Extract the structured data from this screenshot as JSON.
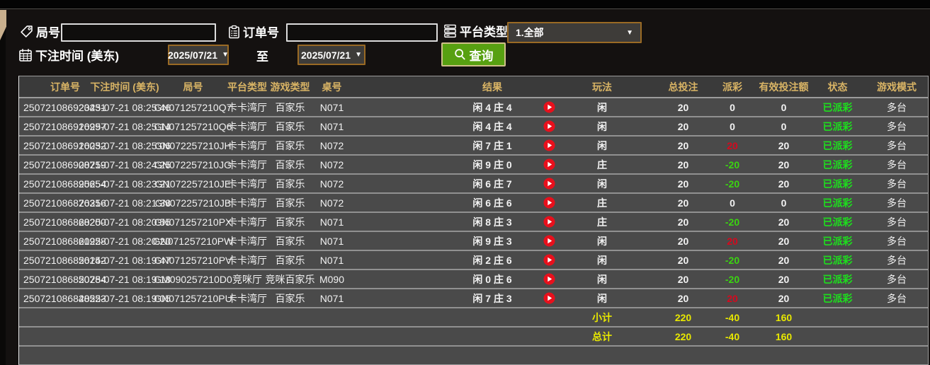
{
  "filters": {
    "round_label": "局号",
    "round_value": "",
    "order_label": "订单号",
    "order_value": "",
    "platform_label": "平台类型",
    "platform_value": "1.全部",
    "bet_time_label": "下注时间 (美东)",
    "date_from": "2025/07/21",
    "date_to": "2025/07/21",
    "to_label": "至",
    "query_label": "查询",
    "dropdown_arrow": "▼"
  },
  "table": {
    "columns": [
      "订单号",
      "下注时间 (美东)",
      "局号",
      "平台类型",
      "游戏类型",
      "桌号",
      "结果",
      "",
      "玩法",
      "总投注",
      "派彩",
      "有效投注额",
      "状态",
      "游戏模式"
    ],
    "rows": [
      {
        "order_id": "250721086923431",
        "bet_time": "2025-07-21 08:25:46",
        "round_id": "GN071257210Q7",
        "platform": "卡卡湾厅",
        "game_type": "百家乐",
        "table_no": "N071",
        "result": "闲 4 庄 4",
        "play": "闲",
        "total_bet": "20",
        "payout": "0",
        "payout_color": "white",
        "valid_bet": "0",
        "status": "已派彩",
        "mode": "多台"
      },
      {
        "order_id": "250721086916997",
        "bet_time": "2025-07-21 08:25:14",
        "round_id": "GN071257210Q6",
        "platform": "卡卡湾厅",
        "game_type": "百家乐",
        "table_no": "N071",
        "result": "闲 4 庄 4",
        "play": "闲",
        "total_bet": "20",
        "payout": "0",
        "payout_color": "white",
        "valid_bet": "0",
        "status": "已派彩",
        "mode": "多台"
      },
      {
        "order_id": "250721086916032",
        "bet_time": "2025-07-21 08:25:06",
        "round_id": "GN072257210JH",
        "platform": "卡卡湾厅",
        "game_type": "百家乐",
        "table_no": "N072",
        "result": "闲 7 庄 1",
        "play": "闲",
        "total_bet": "20",
        "payout": "20",
        "payout_color": "red",
        "valid_bet": "20",
        "status": "已派彩",
        "mode": "多台"
      },
      {
        "order_id": "250721086908719",
        "bet_time": "2025-07-21 08:24:25",
        "round_id": "GN072257210JG",
        "platform": "卡卡湾厅",
        "game_type": "百家乐",
        "table_no": "N072",
        "result": "闲 9 庄 0",
        "play": "庄",
        "total_bet": "20",
        "payout": "-20",
        "payout_color": "green",
        "valid_bet": "20",
        "status": "已派彩",
        "mode": "多台"
      },
      {
        "order_id": "250721086895654",
        "bet_time": "2025-07-21 08:23:21",
        "round_id": "GN072257210JE",
        "platform": "卡卡湾厅",
        "game_type": "百家乐",
        "table_no": "N072",
        "result": "闲 6 庄 7",
        "play": "闲",
        "total_bet": "20",
        "payout": "-20",
        "payout_color": "green",
        "valid_bet": "20",
        "status": "已派彩",
        "mode": "多台"
      },
      {
        "order_id": "250721086876316",
        "bet_time": "2025-07-21 08:21:38",
        "round_id": "GN072257210JB",
        "platform": "卡卡湾厅",
        "game_type": "百家乐",
        "table_no": "N072",
        "result": "闲 6 庄 6",
        "play": "庄",
        "total_bet": "20",
        "payout": "0",
        "payout_color": "white",
        "valid_bet": "0",
        "status": "已派彩",
        "mode": "多台"
      },
      {
        "order_id": "250721086868200",
        "bet_time": "2025-07-21 08:20:55",
        "round_id": "GN071257210PX",
        "platform": "卡卡湾厅",
        "game_type": "百家乐",
        "table_no": "N071",
        "result": "闲 8 庄 3",
        "play": "庄",
        "total_bet": "20",
        "payout": "-20",
        "payout_color": "green",
        "valid_bet": "20",
        "status": "已派彩",
        "mode": "多台"
      },
      {
        "order_id": "250721086861928",
        "bet_time": "2025-07-21 08:20:20",
        "round_id": "GN071257210PW",
        "platform": "卡卡湾厅",
        "game_type": "百家乐",
        "table_no": "N071",
        "result": "闲 9 庄 3",
        "play": "闲",
        "total_bet": "20",
        "payout": "20",
        "payout_color": "red",
        "valid_bet": "20",
        "status": "已派彩",
        "mode": "多台"
      },
      {
        "order_id": "250721086856142",
        "bet_time": "2025-07-21 08:19:47",
        "round_id": "GN071257210PV",
        "platform": "卡卡湾厅",
        "game_type": "百家乐",
        "table_no": "N071",
        "result": "闲 2 庄 6",
        "play": "闲",
        "total_bet": "20",
        "payout": "-20",
        "payout_color": "green",
        "valid_bet": "20",
        "status": "已派彩",
        "mode": "多台"
      },
      {
        "order_id": "250721086850784",
        "bet_time": "2025-07-21 08:19:18",
        "round_id": "GM090257210D0",
        "platform": "竞咪厅",
        "game_type": "竞咪百家乐",
        "table_no": "M090",
        "result": "闲 0 庄 6",
        "play": "闲",
        "total_bet": "20",
        "payout": "-20",
        "payout_color": "green",
        "valid_bet": "20",
        "status": "已派彩",
        "mode": "多台"
      },
      {
        "order_id": "250721086848523",
        "bet_time": "2025-07-21 08:19:05",
        "round_id": "GN071257210PU",
        "platform": "卡卡湾厅",
        "game_type": "百家乐",
        "table_no": "N071",
        "result": "闲 7 庄 3",
        "play": "闲",
        "total_bet": "20",
        "payout": "20",
        "payout_color": "red",
        "valid_bet": "20",
        "status": "已派彩",
        "mode": "多台"
      }
    ],
    "subtotal": {
      "label": "小计",
      "total_bet": "220",
      "payout": "-40",
      "valid_bet": "160"
    },
    "total": {
      "label": "总计",
      "total_bet": "220",
      "payout": "-40",
      "valid_bet": "160"
    }
  },
  "colors": {
    "header_text": "#d9b465",
    "payout_positive": "#d5091e",
    "payout_negative": "#3bd411",
    "status_paid": "#1de01d",
    "totals_yellow": "#e8e800",
    "accent_border": "#9a6a24",
    "query_green": "#57a011"
  },
  "icons": {
    "round": "tag-icon",
    "order": "clipboard-icon",
    "platform": "server-stack-icon",
    "bet_time": "calendar-icon",
    "query": "search-icon",
    "result_row": "play-icon"
  }
}
